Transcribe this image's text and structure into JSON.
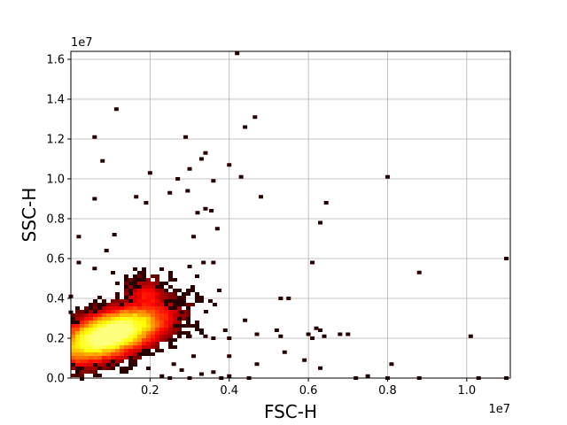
{
  "chart_data": {
    "type": "heatmap",
    "subtype": "2d-density-histogram",
    "xlabel": "FSC-H",
    "ylabel": "SSC-H",
    "x_offset_label": "1e7",
    "y_offset_label": "1e7",
    "xlim": [
      0.0,
      1.11
    ],
    "ylim": [
      0.0,
      1.64
    ],
    "x_ticks": [
      0.2,
      0.4,
      0.6,
      0.8,
      1.0
    ],
    "x_tick_labels": [
      "0.2",
      "0.4",
      "0.6",
      "0.8",
      "1.0"
    ],
    "y_ticks": [
      0.0,
      0.2,
      0.4,
      0.6,
      0.8,
      1.0,
      1.2,
      1.4,
      1.6
    ],
    "y_tick_labels": [
      "0.0",
      "0.2",
      "0.4",
      "0.6",
      "0.8",
      "1.0",
      "1.2",
      "1.4",
      "1.6"
    ],
    "grid": true,
    "colormap": "hot",
    "colors": {
      "low": "#1a0000",
      "mid": "#d42000",
      "high": "#ffff60"
    },
    "core_center": [
      0.1,
      0.22
    ],
    "outlier_points": [
      [
        0.42,
        1.63
      ],
      [
        0.115,
        1.35
      ],
      [
        0.06,
        1.21
      ],
      [
        0.08,
        1.09
      ],
      [
        0.29,
        1.21
      ],
      [
        0.465,
        1.31
      ],
      [
        0.44,
        1.26
      ],
      [
        0.34,
        1.13
      ],
      [
        0.2,
        1.03
      ],
      [
        0.3,
        1.05
      ],
      [
        0.33,
        1.1
      ],
      [
        0.4,
        1.07
      ],
      [
        0.43,
        1.01
      ],
      [
        0.8,
        1.01
      ],
      [
        0.27,
        1.0
      ],
      [
        0.36,
        0.99
      ],
      [
        0.165,
        0.91
      ],
      [
        0.295,
        0.94
      ],
      [
        0.06,
        0.9
      ],
      [
        0.25,
        0.93
      ],
      [
        0.48,
        0.91
      ],
      [
        0.19,
        0.88
      ],
      [
        0.34,
        0.85
      ],
      [
        0.32,
        0.83
      ],
      [
        0.645,
        0.88
      ],
      [
        0.355,
        0.84
      ],
      [
        0.63,
        0.78
      ],
      [
        0.37,
        0.75
      ],
      [
        0.02,
        0.71
      ],
      [
        0.11,
        0.72
      ],
      [
        0.09,
        0.64
      ],
      [
        0.31,
        0.71
      ],
      [
        0.36,
        0.58
      ],
      [
        0.61,
        0.58
      ],
      [
        0.02,
        0.58
      ],
      [
        0.06,
        0.55
      ],
      [
        0.335,
        0.58
      ],
      [
        0.3,
        0.56
      ],
      [
        0.88,
        0.53
      ],
      [
        0.0,
        0.41
      ],
      [
        1.1,
        0.6
      ],
      [
        0.53,
        0.4
      ],
      [
        0.55,
        0.4
      ],
      [
        0.28,
        0.33
      ],
      [
        0.0,
        0.33
      ],
      [
        0.44,
        0.29
      ],
      [
        0.47,
        0.22
      ],
      [
        0.52,
        0.24
      ],
      [
        0.53,
        0.21
      ],
      [
        0.6,
        0.22
      ],
      [
        0.62,
        0.25
      ],
      [
        0.63,
        0.24
      ],
      [
        0.61,
        0.2
      ],
      [
        0.64,
        0.21
      ],
      [
        0.68,
        0.22
      ],
      [
        0.7,
        0.22
      ],
      [
        0.39,
        0.24
      ],
      [
        0.33,
        0.24
      ],
      [
        0.4,
        0.2
      ],
      [
        0.34,
        0.21
      ],
      [
        0.36,
        0.2
      ],
      [
        0.3,
        0.21
      ],
      [
        1.01,
        0.21
      ],
      [
        0.54,
        0.13
      ],
      [
        0.59,
        0.09
      ],
      [
        0.63,
        0.05
      ],
      [
        0.81,
        0.07
      ],
      [
        0.47,
        0.07
      ],
      [
        0.72,
        0.0
      ],
      [
        0.75,
        0.01
      ],
      [
        0.8,
        0.0
      ],
      [
        0.88,
        0.0
      ],
      [
        1.03,
        0.0
      ],
      [
        1.1,
        0.0
      ],
      [
        0.45,
        0.0
      ],
      [
        0.4,
        0.01
      ],
      [
        0.36,
        0.03
      ],
      [
        0.33,
        0.02
      ],
      [
        0.28,
        0.04
      ],
      [
        0.23,
        0.01
      ],
      [
        0.3,
        0.0
      ],
      [
        0.25,
        0.0
      ],
      [
        0.38,
        0.0
      ],
      [
        0.26,
        0.07
      ],
      [
        0.31,
        0.11
      ],
      [
        0.4,
        0.11
      ]
    ]
  }
}
